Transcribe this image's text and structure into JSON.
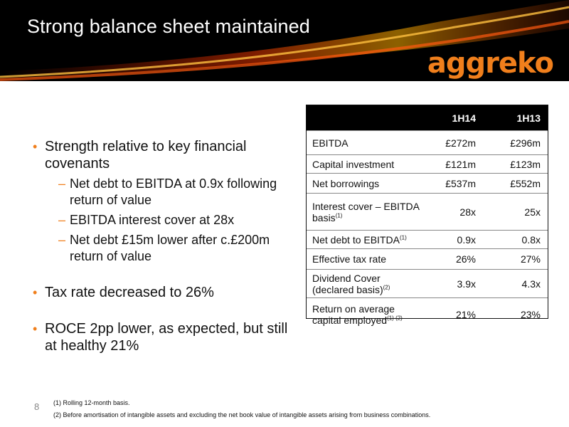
{
  "slide": {
    "title": "Strong balance sheet maintained",
    "logo": "aggreko",
    "page_number": "8"
  },
  "bullets": [
    {
      "text": "Strength relative to key financial covenants",
      "sub": [
        "Net debt to EBITDA at 0.9x following return of value",
        "EBITDA interest cover at 28x",
        "Net debt £15m lower after c.£200m return of value"
      ]
    },
    {
      "text": "Tax rate decreased to 26%",
      "sub": []
    },
    {
      "text": "ROCE 2pp lower, as expected, but still at healthy 21%",
      "sub": []
    }
  ],
  "table": {
    "columns": [
      "",
      "1H14",
      "1H13"
    ],
    "rows": [
      {
        "label": "EBITDA",
        "sup": "",
        "v1": "£272m",
        "v2": "£296m"
      },
      {
        "label": "Capital investment",
        "sup": "",
        "v1": "£121m",
        "v2": "£123m"
      },
      {
        "label": "Net borrowings",
        "sup": "",
        "v1": "£537m",
        "v2": "£552m"
      },
      {
        "label": "Interest cover – EBITDA basis",
        "sup": "(1)",
        "v1": "28x",
        "v2": "25x"
      },
      {
        "label": "Net debt to EBITDA",
        "sup": "(1)",
        "v1": "0.9x",
        "v2": "0.8x"
      },
      {
        "label": "Effective tax rate",
        "sup": "",
        "v1": "26%",
        "v2": "27%"
      },
      {
        "label": "Dividend Cover (declared basis)",
        "sup": "(2)",
        "v1": "3.9x",
        "v2": "4.3x"
      },
      {
        "label": "Return on average capital employed",
        "sup": "(1) (2)",
        "v1": "21%",
        "v2": "23%"
      }
    ]
  },
  "footnotes": [
    "(1) Rolling 12-month basis.",
    "(2) Before amortisation of intangible assets and excluding the net book value of intangible assets arising from business combinations."
  ],
  "colors": {
    "accent": "#f07f1c",
    "logo": "#f07f1c",
    "header_bg": "#000000"
  }
}
